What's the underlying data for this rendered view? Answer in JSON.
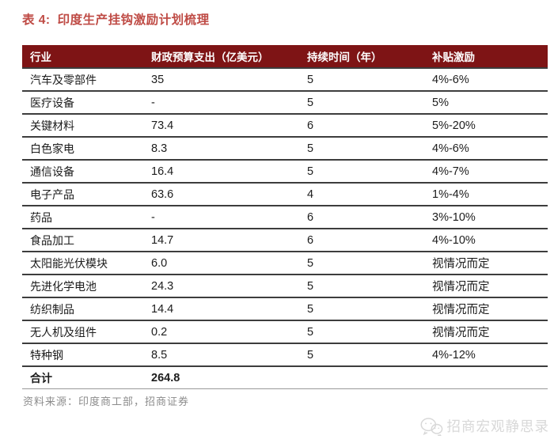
{
  "title": {
    "label": "表 4:",
    "text": "印度生产挂钩激励计划梳理"
  },
  "table": {
    "headers": [
      "行业",
      "财政预算支出（亿美元）",
      "持续时间（年）",
      "补贴激励"
    ],
    "column_keys": [
      "industry",
      "budget",
      "duration",
      "subsidy"
    ],
    "rows": [
      [
        "汽车及零部件",
        "35",
        "5",
        "4%-6%"
      ],
      [
        "医疗设备",
        "-",
        "5",
        "5%"
      ],
      [
        "关键材料",
        "73.4",
        "6",
        "5%-20%"
      ],
      [
        "白色家电",
        "8.3",
        "5",
        "4%-6%"
      ],
      [
        "通信设备",
        "16.4",
        "5",
        "4%-7%"
      ],
      [
        "电子产品",
        "63.6",
        "4",
        "1%-4%"
      ],
      [
        "药品",
        "-",
        "6",
        "3%-10%"
      ],
      [
        "食品加工",
        "14.7",
        "6",
        "4%-10%"
      ],
      [
        "太阳能光伏模块",
        "6.0",
        "5",
        "视情况而定"
      ],
      [
        "先进化学电池",
        "24.3",
        "5",
        "视情况而定"
      ],
      [
        "纺织制品",
        "14.4",
        "5",
        "视情况而定"
      ],
      [
        "无人机及组件",
        "0.2",
        "5",
        "视情况而定"
      ],
      [
        "特种钢",
        "8.5",
        "5",
        "4%-12%"
      ]
    ],
    "total_row": {
      "label": "合计",
      "value": "264.8"
    }
  },
  "source": "资料来源：印度商工部，招商证券",
  "watermark": {
    "icon": "wechat-icon",
    "text": "招商宏观静思录"
  },
  "colors": {
    "header_bg": "#7e1415",
    "header_text": "#ffffff",
    "title_text": "#bf4b45",
    "row_divider": "#3d3d3d",
    "source_text": "#8c8c8c",
    "watermark_text": "#d8d8d8"
  }
}
